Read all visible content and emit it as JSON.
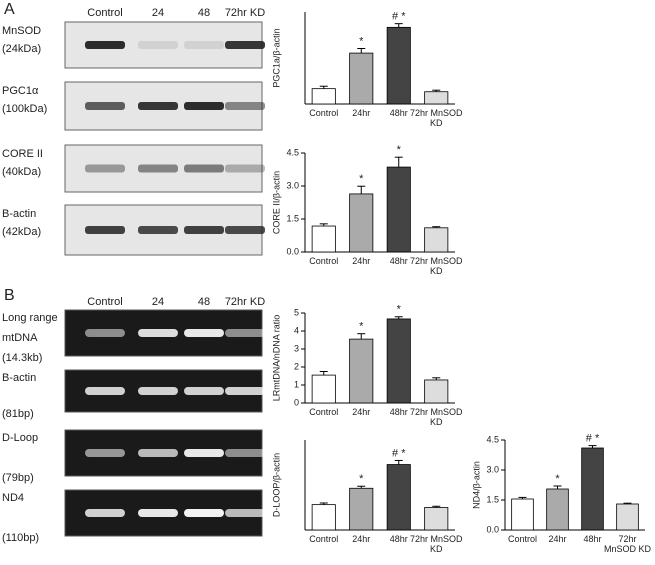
{
  "panel_a": {
    "label": "A",
    "lanes": [
      "Control",
      "24",
      "48",
      "72hr KD"
    ],
    "blots": [
      {
        "lines": [
          "MnSOD",
          "(24kDa)"
        ]
      },
      {
        "lines": [
          "PGC1α",
          "(100kDa)"
        ]
      },
      {
        "lines": [
          "CORE II",
          "(40kDa)"
        ]
      },
      {
        "lines": [
          "B-actin",
          "(42kDa)"
        ]
      }
    ]
  },
  "panel_b": {
    "label": "B",
    "lanes": [
      "Control",
      "24",
      "48",
      "72hr KD"
    ],
    "gels": [
      {
        "lines": [
          "Long range",
          "mtDNA",
          "(14.3kb)"
        ]
      },
      {
        "lines": [
          "B-actin",
          "(81bp)"
        ]
      },
      {
        "lines": [
          "D-Loop",
          "(79bp)"
        ]
      },
      {
        "lines": [
          "ND4",
          "(110bp)"
        ]
      }
    ]
  },
  "chart_data": [
    {
      "type": "bar",
      "y_label": "PGC1a/β-actin",
      "categories": [
        "Control",
        "24hr",
        "48hr",
        "72hr MnSOD KD"
      ],
      "values": [
        0.5,
        1.66,
        2.5,
        0.4
      ],
      "errors": [
        0.08,
        0.15,
        0.12,
        0.05
      ],
      "markers": [
        null,
        "*",
        "# *",
        null
      ],
      "colors": [
        "#ffffff",
        "#aaaaaa",
        "#444444",
        "#dddddd"
      ],
      "ylim": [
        0,
        3
      ]
    },
    {
      "type": "bar",
      "y_label": "CORE II/β-actin",
      "categories": [
        "Control",
        "24hr",
        "48hr",
        "72hr MnSOD KD"
      ],
      "values": [
        1.18,
        2.64,
        3.86,
        1.1
      ],
      "errors": [
        0.1,
        0.35,
        0.45,
        0.05
      ],
      "markers": [
        null,
        "*",
        "*",
        null
      ],
      "colors": [
        "#ffffff",
        "#aaaaaa",
        "#444444",
        "#dddddd"
      ],
      "ylim": [
        0,
        4.5
      ],
      "yticks": [
        {
          "value": 0,
          "label": "0.0"
        },
        1.5,
        {
          "value": 3,
          "label": "3.0"
        },
        4.5
      ]
    },
    {
      "type": "bar",
      "y_label": "LRmtDNA/nDNA ratio",
      "categories": [
        "Control",
        "24hr",
        "48hr",
        "72hr MnSOD KD"
      ],
      "values": [
        1.55,
        3.55,
        4.67,
        1.28
      ],
      "errors": [
        0.2,
        0.3,
        0.12,
        0.12
      ],
      "markers": [
        null,
        "*",
        "*",
        null
      ],
      "colors": [
        "#ffffff",
        "#aaaaaa",
        "#444444",
        "#dddddd"
      ],
      "ylim": [
        0,
        5
      ],
      "yticks": [
        0,
        1,
        2,
        3,
        4,
        5
      ]
    },
    {
      "type": "bar",
      "y_label": "D-LOOP/β-actin",
      "categories": [
        "Control",
        "24hr",
        "48hr",
        "72hr MnSOD KD"
      ],
      "values": [
        0.62,
        1.02,
        1.6,
        0.55
      ],
      "errors": [
        0.04,
        0.05,
        0.1,
        0.03
      ],
      "markers": [
        null,
        "*",
        "# *",
        null
      ],
      "colors": [
        "#ffffff",
        "#aaaaaa",
        "#444444",
        "#dddddd"
      ],
      "ylim": [
        0,
        2.2
      ]
    },
    {
      "type": "bar",
      "y_label": "ND4/β-actin",
      "categories": [
        "Control",
        "24hr",
        "48hr",
        "72hr MnSOD KD"
      ],
      "values": [
        1.55,
        2.05,
        4.1,
        1.3
      ],
      "errors": [
        0.08,
        0.15,
        0.12,
        0.04
      ],
      "markers": [
        null,
        "*",
        "# *",
        null
      ],
      "colors": [
        "#ffffff",
        "#aaaaaa",
        "#444444",
        "#dddddd"
      ],
      "ylim": [
        0,
        4.5
      ],
      "yticks": [
        {
          "value": 0,
          "label": "0.0"
        },
        1.5,
        {
          "value": 3,
          "label": "3.0"
        },
        4.5
      ]
    }
  ]
}
